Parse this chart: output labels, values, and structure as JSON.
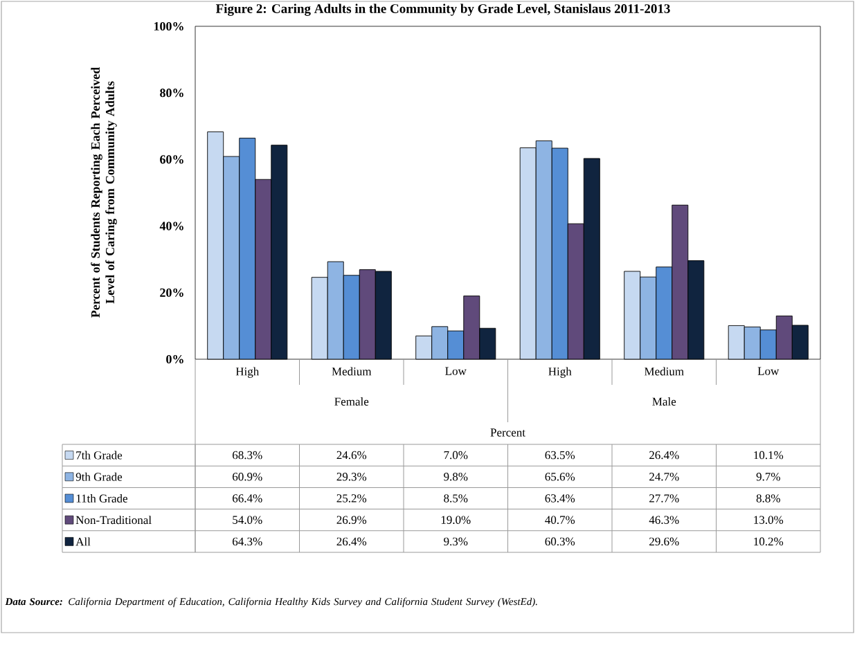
{
  "chart_data": {
    "type": "bar",
    "title": "Figure 2: Caring Adults in the Community by Grade Level, Stanislaus 2011-2013",
    "ylabel": "Percent of Students Reporting Each Perceived Level of Caring from Community Adults",
    "xlabel": "Percent",
    "categories": [
      "High",
      "Medium",
      "Low",
      "High",
      "Medium",
      "Low"
    ],
    "annotations": [
      "Female",
      "Male",
      "**Data Source:** California Department of Education, California Healthy Kids Survey and California Student Survey (WestEd)."
    ],
    "series": [
      {
        "name": "7th Grade",
        "color": "#c6d9f1",
        "values": [
          68.3,
          24.6,
          7.0,
          63.5,
          26.4,
          10.1
        ],
        "value_labels": [
          "68.3%",
          "24.6%",
          "7.0%",
          "63.5%",
          "26.4%",
          "10.1%"
        ]
      },
      {
        "name": "9th Grade",
        "color": "#8eb4e3",
        "values": [
          60.9,
          29.3,
          9.8,
          65.6,
          24.7,
          9.7
        ],
        "value_labels": [
          "60.9%",
          "29.3%",
          "9.8%",
          "65.6%",
          "24.7%",
          "9.7%"
        ]
      },
      {
        "name": "11th Grade",
        "color": "#558ed5",
        "values": [
          66.4,
          25.2,
          8.5,
          63.4,
          27.7,
          8.8
        ],
        "value_labels": [
          "66.4%",
          "25.2%",
          "8.5%",
          "63.4%",
          "27.7%",
          "8.8%"
        ]
      },
      {
        "name": "Non-Traditional",
        "color": "#604a7b",
        "values": [
          54.0,
          26.9,
          19.0,
          40.7,
          46.3,
          13.0
        ],
        "value_labels": [
          "54.0%",
          "26.9%",
          "19.0%",
          "40.7%",
          "46.3%",
          "13.0%"
        ]
      },
      {
        "name": "All",
        "color": "#10243f",
        "values": [
          64.3,
          26.4,
          9.3,
          60.3,
          29.6,
          10.2
        ],
        "value_labels": [
          "64.3%",
          "26.4%",
          "9.3%",
          "60.3%",
          "29.6%",
          "10.2%"
        ]
      }
    ],
    "ylim": [
      0,
      100
    ],
    "yticks": [
      {
        "value": 0,
        "label": "0%"
      },
      {
        "value": 20,
        "label": "20%"
      },
      {
        "value": 40,
        "label": "40%"
      },
      {
        "value": 60,
        "label": "60%"
      },
      {
        "value": 80,
        "label": "80%"
      },
      {
        "value": 100,
        "label": "100%"
      }
    ],
    "legend": "bottom",
    "grid": false
  }
}
